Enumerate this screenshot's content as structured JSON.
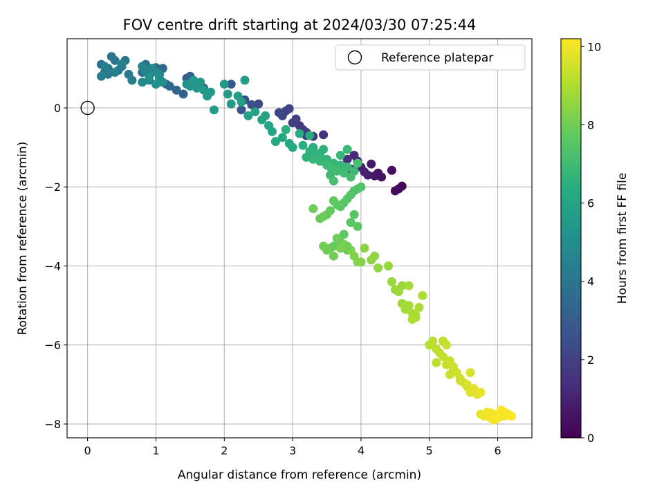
{
  "chart_data": {
    "type": "scatter",
    "title": "FOV centre drift starting at 2024/03/30 07:25:44",
    "xlabel": "Angular distance from reference (arcmin)",
    "ylabel": "Rotation from reference (arcmin)",
    "xlim": [
      -0.3,
      6.5
    ],
    "ylim": [
      -8.35,
      1.75
    ],
    "xticks": [
      0,
      1,
      2,
      3,
      4,
      5,
      6
    ],
    "yticks": [
      0,
      -2,
      -4,
      -6,
      -8
    ],
    "xtick_labels": [
      "0",
      "1",
      "2",
      "3",
      "4",
      "5",
      "6"
    ],
    "ytick_labels": [
      "0",
      "−2",
      "−4",
      "−6",
      "−8"
    ],
    "grid": true,
    "legend": {
      "position": "top-right",
      "entries": [
        {
          "label": "Reference platepar",
          "marker": "open-circle"
        }
      ]
    },
    "reference_point": {
      "x": 0,
      "y": 0
    },
    "colorbar": {
      "label": "Hours from first FF file",
      "min": 0,
      "max": 10.2,
      "ticks": [
        0,
        2,
        4,
        6,
        8,
        10
      ],
      "tick_labels": [
        "0",
        "2",
        "4",
        "6",
        "8",
        "10"
      ],
      "colormap": "viridis"
    },
    "series": [
      {
        "x": [
          4.6,
          4.55,
          4.5,
          4.45,
          4.3,
          4.2,
          4.15,
          4.1,
          4.05,
          4.0,
          3.95,
          3.9,
          3.85,
          4.25,
          3.8
        ],
        "y": [
          -1.98,
          -2.05,
          -2.1,
          -1.58,
          -1.75,
          -1.72,
          -1.42,
          -1.7,
          -1.62,
          -1.5,
          -1.35,
          -1.2,
          -1.55,
          -1.65,
          -1.3
        ],
        "t": [
          0.1,
          0.2,
          0.3,
          0.4,
          0.5,
          0.6,
          0.7,
          0.8,
          0.9,
          1.0,
          1.1,
          1.2,
          1.3,
          0.55,
          1.4
        ]
      },
      {
        "x": [
          3.45,
          3.3,
          3.2,
          3.1,
          3.0,
          2.9,
          2.85,
          2.8,
          3.05,
          2.95,
          3.15,
          3.2
        ],
        "y": [
          -0.68,
          -0.72,
          -0.62,
          -0.45,
          -0.38,
          -0.08,
          -0.2,
          -0.12,
          -0.28,
          -0.02,
          -0.55,
          -0.7
        ],
        "t": [
          1.5,
          1.6,
          1.7,
          1.8,
          1.9,
          2.0,
          2.1,
          2.2,
          2.05,
          2.15,
          1.75,
          1.65
        ]
      },
      {
        "x": [
          2.5,
          2.45,
          2.4,
          2.3,
          2.25,
          2.1,
          1.7,
          1.5,
          1.45,
          1.4,
          1.3,
          1.2,
          1.1,
          1.05,
          1.0,
          0.9,
          0.85,
          0.8,
          1.15
        ],
        "y": [
          0.1,
          0.05,
          0.08,
          0.2,
          -0.05,
          0.6,
          0.5,
          0.8,
          0.75,
          0.35,
          0.45,
          0.55,
          1.0,
          0.85,
          1.02,
          0.95,
          1.1,
          0.9,
          0.6
        ],
        "t": [
          2.3,
          2.4,
          2.5,
          2.6,
          2.7,
          2.8,
          2.9,
          3.0,
          3.1,
          3.2,
          3.3,
          3.4,
          3.5,
          3.55,
          3.6,
          3.65,
          3.7,
          3.75,
          3.45
        ]
      },
      {
        "x": [
          0.2,
          0.25,
          0.3,
          0.35,
          0.4,
          0.45,
          0.5,
          0.55,
          0.6,
          0.65,
          0.3,
          0.2,
          0.25,
          0.4,
          0.5
        ],
        "y": [
          1.1,
          0.9,
          1.0,
          1.3,
          1.2,
          0.95,
          1.05,
          1.2,
          0.85,
          0.7,
          0.85,
          0.8,
          1.05,
          0.9,
          1.1
        ],
        "t": [
          3.8,
          3.85,
          3.9,
          3.95,
          4.0,
          4.05,
          4.1,
          4.15,
          4.2,
          4.3,
          4.25,
          4.35,
          4.4,
          4.45,
          4.5
        ]
      },
      {
        "x": [
          0.8,
          0.85,
          0.9,
          0.95,
          1.0,
          1.05,
          1.1,
          0.9,
          1.0,
          0.85,
          0.95,
          1.05,
          0.8,
          1.45,
          1.5,
          1.55,
          1.6,
          1.65,
          1.7,
          1.75,
          1.8,
          1.85,
          2.0,
          2.05,
          2.1,
          2.3,
          2.2,
          2.25,
          2.35,
          2.45,
          2.55,
          2.6,
          2.65,
          2.7,
          2.75,
          2.85,
          2.95,
          3.0,
          3.1,
          3.25,
          3.3,
          3.15,
          2.9
        ],
        "y": [
          1.05,
          0.95,
          0.7,
          1.0,
          0.9,
          0.75,
          0.65,
          0.8,
          0.6,
          0.95,
          1.0,
          0.85,
          0.65,
          0.6,
          0.55,
          0.7,
          0.5,
          0.65,
          0.45,
          0.3,
          0.4,
          -0.05,
          0.6,
          0.35,
          0.1,
          0.7,
          0.3,
          0.15,
          -0.2,
          -0.1,
          -0.3,
          -0.2,
          -0.45,
          -0.6,
          -0.85,
          -0.75,
          -0.9,
          -1.0,
          -0.65,
          -0.7,
          -1.0,
          -0.95,
          -0.55
        ],
        "t": [
          4.6,
          4.7,
          4.8,
          4.9,
          5.0,
          5.05,
          5.1,
          5.15,
          5.2,
          4.65,
          4.75,
          4.85,
          4.95,
          5.25,
          5.3,
          5.35,
          5.4,
          5.45,
          5.5,
          5.55,
          5.6,
          5.65,
          5.5,
          5.55,
          5.6,
          5.65,
          5.7,
          5.75,
          5.8,
          5.85,
          5.9,
          5.95,
          6.0,
          6.05,
          6.1,
          6.15,
          6.2,
          6.25,
          6.3,
          6.35,
          6.4,
          6.45,
          6.5
        ]
      },
      {
        "x": [
          3.2,
          3.4,
          3.5,
          3.6,
          3.7,
          3.8,
          3.9,
          3.55,
          3.65,
          3.75,
          3.85,
          3.45,
          3.35,
          3.3,
          3.6,
          3.7,
          3.5,
          3.4,
          3.8,
          3.95,
          3.25,
          3.65,
          3.55
        ],
        "y": [
          -1.25,
          -1.2,
          -1.3,
          -1.4,
          -1.45,
          -1.5,
          -1.6,
          -1.7,
          -1.55,
          -1.65,
          -1.75,
          -1.05,
          -1.15,
          -1.3,
          -1.85,
          -1.2,
          -1.45,
          -1.35,
          -1.05,
          -1.4,
          -1.1,
          -1.6,
          -1.5
        ],
        "t": [
          6.6,
          6.65,
          6.7,
          6.75,
          6.8,
          6.85,
          6.9,
          6.95,
          7.0,
          7.05,
          7.1,
          6.6,
          6.65,
          6.7,
          7.15,
          6.8,
          6.9,
          6.75,
          6.85,
          7.2,
          6.55,
          7.0,
          6.95
        ]
      },
      {
        "x": [
          3.9,
          3.95,
          4.0,
          3.85,
          3.8,
          3.75,
          3.7,
          3.65,
          3.6,
          3.55,
          3.5,
          3.45,
          3.4,
          3.3,
          3.9,
          3.85,
          3.95,
          3.75,
          3.65,
          3.6,
          3.7,
          3.8,
          3.55,
          3.5,
          3.45,
          3.6,
          3.7,
          3.75,
          3.85,
          3.9,
          3.95,
          4.0,
          4.05,
          4.15,
          4.2,
          4.25,
          3.8,
          3.65
        ],
        "y": [
          -2.1,
          -2.05,
          -2.0,
          -2.2,
          -2.3,
          -2.4,
          -2.5,
          -2.45,
          -2.35,
          -2.6,
          -2.7,
          -2.75,
          -2.8,
          -2.55,
          -2.7,
          -2.9,
          -3.0,
          -3.2,
          -3.3,
          -3.5,
          -3.4,
          -3.6,
          -3.55,
          -3.6,
          -3.5,
          -3.75,
          -3.55,
          -3.45,
          -3.6,
          -3.75,
          -3.9,
          -3.9,
          -3.55,
          -3.85,
          -3.75,
          -4.05,
          -3.5,
          -3.3
        ],
        "t": [
          7.3,
          7.35,
          7.4,
          7.45,
          7.5,
          7.55,
          7.6,
          7.65,
          7.7,
          7.75,
          7.8,
          7.85,
          7.9,
          7.95,
          7.5,
          7.55,
          7.6,
          7.65,
          7.7,
          7.75,
          7.8,
          7.85,
          7.9,
          7.95,
          8.0,
          8.05,
          8.1,
          8.15,
          8.2,
          8.25,
          8.3,
          8.35,
          8.4,
          8.45,
          8.5,
          8.55,
          8.0,
          7.9
        ]
      },
      {
        "x": [
          4.4,
          4.45,
          4.5,
          4.6,
          4.65,
          4.7,
          4.75,
          4.8,
          4.9,
          4.6,
          4.7,
          4.75,
          4.65,
          4.55,
          4.8,
          4.85
        ],
        "y": [
          -4.0,
          -4.4,
          -4.6,
          -4.95,
          -5.1,
          -5.0,
          -5.2,
          -5.3,
          -4.75,
          -4.5,
          -4.5,
          -5.35,
          -5.0,
          -4.65,
          -5.25,
          -5.05
        ],
        "t": [
          8.6,
          8.65,
          8.7,
          8.75,
          8.8,
          8.85,
          8.9,
          8.95,
          9.0,
          8.7,
          8.8,
          9.0,
          8.85,
          8.75,
          8.95,
          8.9
        ]
      },
      {
        "x": [
          5.0,
          5.05,
          5.1,
          5.15,
          5.2,
          5.25,
          5.3,
          5.35,
          5.4,
          5.45,
          5.5,
          5.55,
          5.6,
          5.65,
          5.7,
          5.75,
          5.1,
          5.2,
          5.25,
          5.3,
          5.35,
          5.45,
          5.55,
          5.6
        ],
        "y": [
          -6.0,
          -5.9,
          -6.1,
          -6.2,
          -6.3,
          -6.5,
          -6.4,
          -6.6,
          -6.7,
          -6.85,
          -6.95,
          -7.0,
          -7.2,
          -7.1,
          -7.25,
          -7.2,
          -6.45,
          -5.9,
          -6.0,
          -6.75,
          -6.55,
          -6.9,
          -7.05,
          -6.7
        ],
        "t": [
          9.1,
          9.15,
          9.2,
          9.25,
          9.3,
          9.35,
          9.4,
          9.45,
          9.5,
          9.55,
          9.6,
          9.65,
          9.7,
          9.75,
          9.8,
          9.85,
          9.2,
          9.3,
          9.35,
          9.4,
          9.45,
          9.5,
          9.6,
          9.65
        ]
      },
      {
        "x": [
          5.75,
          5.8,
          5.85,
          5.9,
          5.95,
          6.0,
          6.05,
          6.1,
          6.15,
          6.2,
          5.9,
          6.0,
          6.1
        ],
        "y": [
          -7.75,
          -7.8,
          -7.7,
          -7.85,
          -7.9,
          -7.75,
          -7.65,
          -7.8,
          -7.75,
          -7.8,
          -7.72,
          -7.85,
          -7.7
        ],
        "t": [
          9.9,
          9.95,
          10.0,
          10.05,
          10.1,
          10.15,
          10.2,
          10.1,
          10.05,
          10.2,
          10.0,
          10.15,
          10.1
        ]
      }
    ]
  }
}
